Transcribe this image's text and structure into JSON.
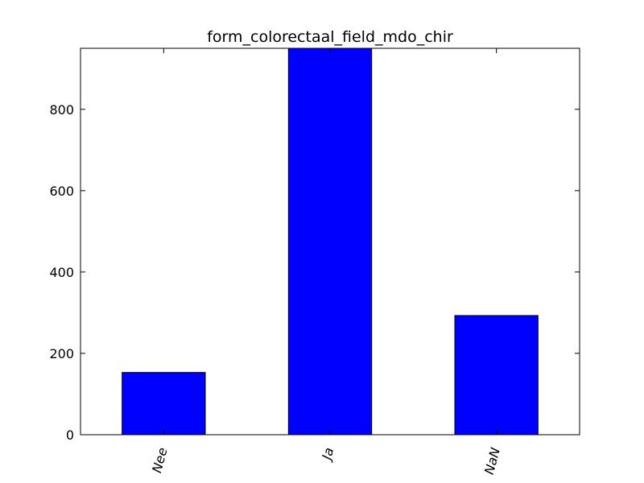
{
  "chart_data": {
    "type": "bar",
    "title": "form_colorectaal_field_mdo_chir",
    "xlabel": "",
    "ylabel": "",
    "categories": [
      "Nee",
      "Ja",
      "NaN"
    ],
    "values": [
      153,
      958,
      293
    ],
    "ylim": [
      0,
      950
    ],
    "yticks": [
      0,
      200,
      400,
      600,
      800
    ],
    "ytick_labels": [
      "0",
      "200",
      "400",
      "600",
      "800"
    ],
    "bar_color": "#0000ff",
    "edge_color": "#000000",
    "grid": false,
    "legend": "none"
  }
}
